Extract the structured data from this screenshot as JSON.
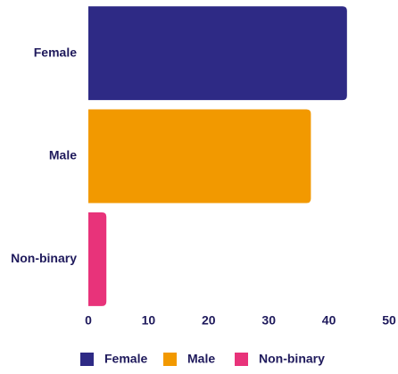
{
  "chart_data": {
    "type": "barh",
    "categories": [
      "Female",
      "Male",
      "Non-binary"
    ],
    "values": [
      43,
      37,
      3
    ],
    "colors": [
      "#2e2a85",
      "#f29900",
      "#e8337a"
    ],
    "xlim": [
      0,
      50
    ],
    "xticks": [
      0,
      10,
      20,
      30,
      40,
      50
    ],
    "grid": false,
    "legend": "bottom"
  }
}
